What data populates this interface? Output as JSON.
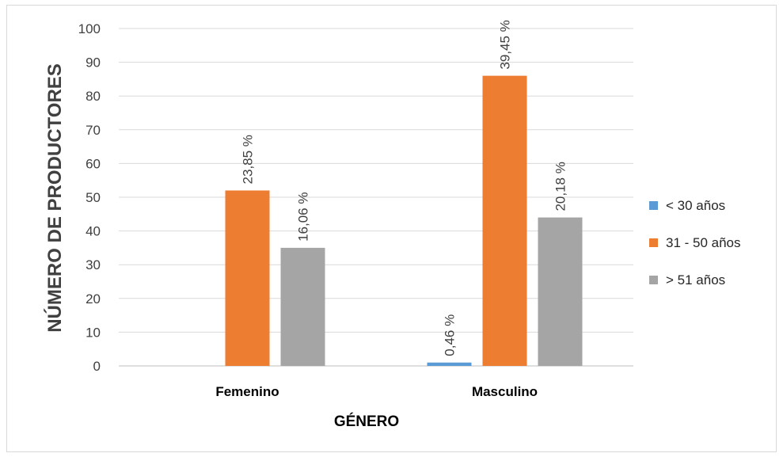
{
  "chart_data": {
    "type": "bar",
    "categories": [
      "Femenino",
      "Masculino"
    ],
    "series": [
      {
        "name": "< 30 años",
        "color": "#5b9bd5",
        "values": [
          0,
          1
        ],
        "labels": [
          "",
          "0,46 %"
        ]
      },
      {
        "name": "31 - 50 años",
        "color": "#ed7d31",
        "values": [
          52,
          86
        ],
        "labels": [
          "23,85 %",
          "39,45 %"
        ]
      },
      {
        "name": "> 51 años",
        "color": "#a5a5a5",
        "values": [
          35,
          44
        ],
        "labels": [
          "16,06 %",
          "20,18 %"
        ]
      }
    ],
    "xlabel": "GÉNERO",
    "ylabel": "NÚMERO DE PRODUCTORES",
    "ylim": [
      0,
      100
    ],
    "yticks": [
      0,
      10,
      20,
      30,
      40,
      50,
      60,
      70,
      80,
      90,
      100
    ],
    "grid": true,
    "legend_position": "right"
  }
}
